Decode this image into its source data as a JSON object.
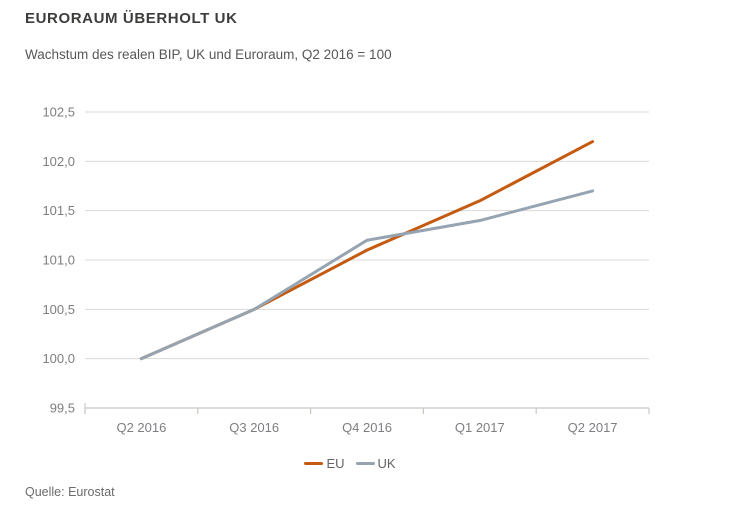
{
  "header": {
    "title": "EURORAUM ÜBERHOLT UK",
    "subtitle": "Wachstum des realen BIP, UK und Euroraum, Q2 2016 = 100"
  },
  "source": "Quelle: Eurostat",
  "colors": {
    "title": "#3d3d3c",
    "subtitle": "#575756",
    "eu_line": "#c55a11",
    "uk_line": "#96a3b1"
  },
  "chart_data": {
    "type": "line",
    "title": "EURORAUM ÜBERHOLT UK",
    "subtitle": "Wachstum des realen BIP, UK und Euroraum, Q2 2016 = 100",
    "categories": [
      "Q2 2016",
      "Q3 2016",
      "Q4 2016",
      "Q1 2017",
      "Q2 2017"
    ],
    "series": [
      {
        "name": "EU",
        "color": "#c55a11",
        "values": [
          100.0,
          100.5,
          101.1,
          101.6,
          102.2
        ]
      },
      {
        "name": "UK",
        "color": "#96a3b1",
        "values": [
          100.0,
          100.5,
          101.2,
          101.4,
          101.7
        ]
      }
    ],
    "xlabel": "",
    "ylabel": "",
    "ylim": [
      99.5,
      102.5
    ],
    "ytick_step": 0.5,
    "ytick_labels": [
      "99,5",
      "100,0",
      "100,5",
      "101,0",
      "101,5",
      "102,0",
      "102,5"
    ],
    "grid": true,
    "grid_color": "#dbd9d4",
    "axis_color": "#c9c7c2",
    "tick_label_color": "#7d7e81",
    "legend_position": "bottom"
  }
}
